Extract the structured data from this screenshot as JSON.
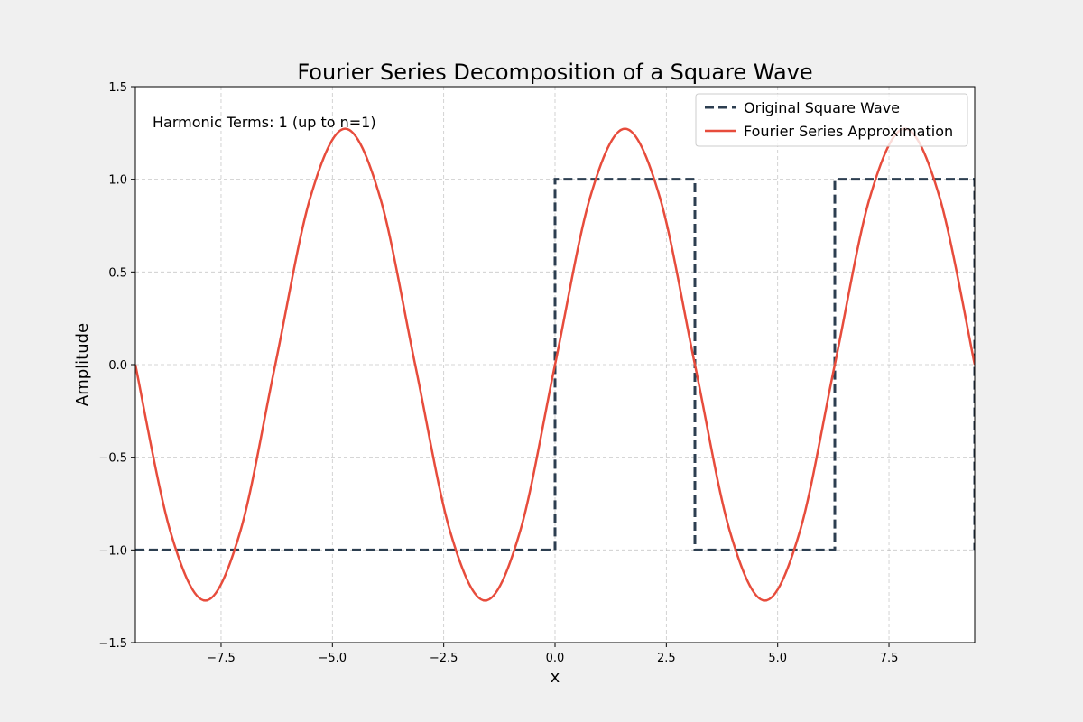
{
  "chart_data": {
    "type": "line",
    "title": "Fourier Series Decomposition of a Square Wave",
    "xlabel": "x",
    "ylabel": "Amplitude",
    "annotation": "Harmonic Terms: 1 (up to n=1)",
    "xlim": [
      -9.42478,
      9.42478
    ],
    "ylim": [
      -1.5,
      1.5
    ],
    "x_ticks": [
      -7.5,
      -5.0,
      -2.5,
      0.0,
      2.5,
      5.0,
      7.5
    ],
    "x_tick_labels": [
      "−7.5",
      "−5.0",
      "−2.5",
      "0.0",
      "2.5",
      "5.0",
      "7.5"
    ],
    "y_ticks": [
      -1.5,
      -1.0,
      -0.5,
      0.0,
      0.5,
      1.0,
      1.5
    ],
    "y_tick_labels": [
      "−1.5",
      "−1.0",
      "−0.5",
      "0.0",
      "0.5",
      "1.0",
      "1.5"
    ],
    "grid": true,
    "legend_position": "top-right",
    "series": [
      {
        "name": "Original Square Wave",
        "style": "dashed",
        "color": "#2c3e50",
        "x": [
          -9.42478,
          0.0,
          0.0,
          3.14159,
          3.14159,
          6.28319,
          6.28319,
          9.42478,
          9.42478
        ],
        "y": [
          -1.0,
          -1.0,
          1.0,
          1.0,
          -1.0,
          -1.0,
          1.0,
          1.0,
          -1.0
        ]
      },
      {
        "name": "Fourier Series Approximation",
        "style": "solid",
        "color": "#e74c3c",
        "x": [
          -9.42478,
          -8.63938,
          -7.85398,
          -7.06858,
          -6.28319,
          -5.49779,
          -4.71239,
          -3.92699,
          -3.14159,
          -2.35619,
          -1.5708,
          -0.7854,
          0.0,
          0.7854,
          1.5708,
          2.35619,
          3.14159,
          3.92699,
          4.71239,
          5.49779,
          6.28319,
          7.06858,
          7.85398,
          8.63938,
          9.42478
        ],
        "y": [
          0.0,
          -0.9003,
          -1.2732,
          -0.9003,
          0.0,
          0.9003,
          1.2732,
          0.9003,
          0.0,
          -0.9003,
          -1.2732,
          -0.9003,
          0.0,
          0.9003,
          1.2732,
          0.9003,
          0.0,
          -0.9003,
          -1.2732,
          -0.9003,
          0.0,
          0.9003,
          1.2732,
          0.9003,
          0.0
        ]
      }
    ]
  }
}
